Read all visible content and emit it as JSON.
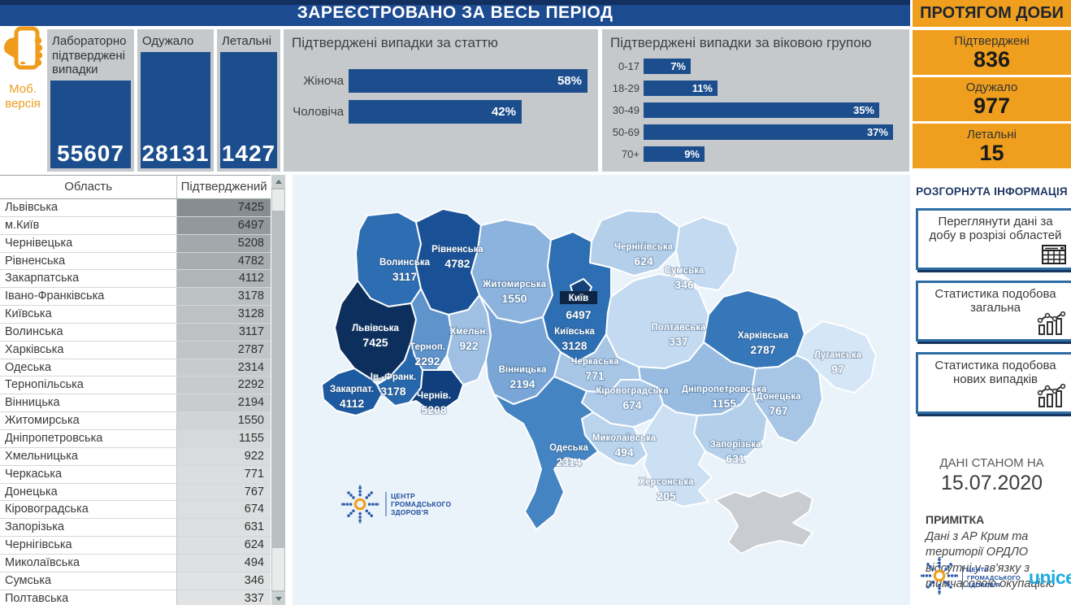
{
  "colors": {
    "navy_bar": "#1d4b91",
    "panel_gray": "#c6c9cb",
    "bar_navy": "#1c4e8e",
    "orange": "#ef9f1d",
    "map_bg": "#eaf2fa",
    "crimea_gray": "#c9cdd1",
    "unicef_blue": "#1cabe2",
    "phc_blue": "#1f4e9c"
  },
  "top_bar": {
    "title": "ЗАРЕЄСТРОВАНО ЗА ВЕСЬ ПЕРІОД"
  },
  "mobile": {
    "label": "Моб. версія"
  },
  "kpis": [
    {
      "label": "Лабораторно підтверджені випадки",
      "value": "55607"
    },
    {
      "label": "Одужало",
      "value": "28131"
    },
    {
      "label": "Летальні",
      "value": "1427"
    }
  ],
  "daily": {
    "title": "ПРОТЯГОМ ДОБИ",
    "cards": [
      {
        "label": "Підтверджені",
        "value": "836"
      },
      {
        "label": "Одужало",
        "value": "977"
      },
      {
        "label": "Летальні",
        "value": "15"
      }
    ]
  },
  "gender": {
    "title": "Підтверджені випадки за статтю",
    "axis_max": 58,
    "bars": [
      {
        "label": "Жіноча",
        "value": 58
      },
      {
        "label": "Чоловіча",
        "value": 42
      }
    ]
  },
  "age": {
    "title": "Підтверджені випадки за віковою групою",
    "axis_max": 37,
    "bars": [
      {
        "label": "0-17",
        "value": 7
      },
      {
        "label": "18-29",
        "value": 11
      },
      {
        "label": "30-49",
        "value": 35
      },
      {
        "label": "50-69",
        "value": 37
      },
      {
        "label": "70+",
        "value": 9
      }
    ]
  },
  "info": {
    "heading": "РОЗГОРНУТА ІНФОРМАЦІЯ",
    "buttons": [
      {
        "label": "Переглянути дані за добу в розрізі областей",
        "icon": "table-icon"
      },
      {
        "label": "Статистика подобова загальна",
        "icon": "chart-icon"
      },
      {
        "label": "Статистика подобова нових випадків",
        "icon": "chart-icon"
      }
    ]
  },
  "footer": {
    "as_of_label": "ДАНІ СТАНОМ НА",
    "date": "15.07.2020",
    "note_title": "ПРИМІТКА",
    "note": "Дані з АР Крим та території ОРДЛО відсутні у зв'язку з тимчасовою окупацією"
  },
  "logos": {
    "phc_lines": [
      "ЦЕНТР",
      "ГРОМАДСЬКОГО",
      "ЗДОРОВ'Я"
    ],
    "unicef": "unicef"
  },
  "table": {
    "headers": [
      "Область",
      "Підтверджений"
    ],
    "rows": [
      [
        "Львівська",
        7425
      ],
      [
        "м.Київ",
        6497
      ],
      [
        "Чернівецька",
        5208
      ],
      [
        "Рівненська",
        4782
      ],
      [
        "Закарпатська",
        4112
      ],
      [
        "Івано-Франківська",
        3178
      ],
      [
        "Київська",
        3128
      ],
      [
        "Волинська",
        3117
      ],
      [
        "Харківська",
        2787
      ],
      [
        "Одеська",
        2314
      ],
      [
        "Тернопільська",
        2292
      ],
      [
        "Вінницька",
        2194
      ],
      [
        "Житомирська",
        1550
      ],
      [
        "Дніпропетровська",
        1155
      ],
      [
        "Хмельницька",
        922
      ],
      [
        "Черкаська",
        771
      ],
      [
        "Донецька",
        767
      ],
      [
        "Кіровоградська",
        674
      ],
      [
        "Запорізька",
        631
      ],
      [
        "Чернігівська",
        624
      ],
      [
        "Миколаївська",
        494
      ],
      [
        "Сумська",
        346
      ],
      [
        "Полтавська",
        337
      ],
      [
        "Херсонська",
        205
      ]
    ]
  },
  "map": {
    "kyiv_tag": "Київ",
    "regions": [
      {
        "id": "volyn",
        "name": "Волинська",
        "map_label": "Волинська",
        "value": 3117,
        "color": "#2d6db1"
      },
      {
        "id": "rivne",
        "name": "Рівненська",
        "map_label": "Рівненська",
        "value": 4782,
        "color": "#1a5196"
      },
      {
        "id": "zhytomyr",
        "name": "Житомирська",
        "map_label": "Житомирська",
        "value": 1550,
        "color": "#8cb3dd"
      },
      {
        "id": "kyivobl",
        "name": "Київська",
        "map_label": "Київська",
        "value": 3128,
        "color": "#2d6fb2"
      },
      {
        "id": "kyivcity",
        "name": "м.Київ",
        "map_label": "Київ",
        "value": 6497,
        "color": "#16407a"
      },
      {
        "id": "chernihiv",
        "name": "Чернігівська",
        "map_label": "Чернігівська",
        "value": 624,
        "color": "#b3cfea"
      },
      {
        "id": "sumy",
        "name": "Сумська",
        "map_label": "Сумська",
        "value": 346,
        "color": "#c3daf0"
      },
      {
        "id": "lviv",
        "name": "Львівська",
        "map_label": "Львівська",
        "value": 7425,
        "color": "#0d2f5d"
      },
      {
        "id": "ternopil",
        "name": "Тернопільська",
        "map_label": "Терноп.",
        "value": 2292,
        "color": "#5e94cb"
      },
      {
        "id": "khmel",
        "name": "Хмельницька",
        "map_label": "Хмельн.",
        "value": 922,
        "color": "#9fc0e3"
      },
      {
        "id": "vinnytsia",
        "name": "Вінницька",
        "map_label": "Вінницька",
        "value": 2194,
        "color": "#79a6d6"
      },
      {
        "id": "cherkasy",
        "name": "Черкаська",
        "map_label": "Черкаська",
        "value": 771,
        "color": "#a7c6e6"
      },
      {
        "id": "poltava",
        "name": "Полтавська",
        "map_label": "Полтавська",
        "value": 337,
        "color": "#c3daf0"
      },
      {
        "id": "kharkiv",
        "name": "Харківська",
        "map_label": "Харківська",
        "value": 2787,
        "color": "#3577b9"
      },
      {
        "id": "luhansk",
        "name": "Луганська",
        "map_label": "Луганська",
        "value": 97,
        "color": "#d5e6f6"
      },
      {
        "id": "ivano",
        "name": "Івано-Франківська",
        "map_label": "Ів.-Франк.",
        "value": 3178,
        "color": "#2767ab"
      },
      {
        "id": "zakarp",
        "name": "Закарпатська",
        "map_label": "Закарпат.",
        "value": 4112,
        "color": "#1d5aa0"
      },
      {
        "id": "chernivtsi",
        "name": "Чернівецька",
        "map_label": "Чернів.",
        "value": 5208,
        "color": "#113f7d"
      },
      {
        "id": "kirovohrad",
        "name": "Кіровоградська",
        "map_label": "Кіровоградська",
        "value": 674,
        "color": "#aecbe9"
      },
      {
        "id": "dnipro",
        "name": "Дніпропетровська",
        "map_label": "Дніпропетровська",
        "value": 1155,
        "color": "#97bbe1"
      },
      {
        "id": "donetsk",
        "name": "Донецька",
        "map_label": "Донецька",
        "value": 767,
        "color": "#a7c6e6"
      },
      {
        "id": "zaporizhzhia",
        "name": "Запорізька",
        "map_label": "Запорізька",
        "value": 631,
        "color": "#b3cfea"
      },
      {
        "id": "mykolaiv",
        "name": "Миколаївська",
        "map_label": "Миколаївська",
        "value": 494,
        "color": "#bad4ed"
      },
      {
        "id": "kherson",
        "name": "Херсонська",
        "map_label": "Херсонська",
        "value": 205,
        "color": "#cce0f3"
      },
      {
        "id": "odesa",
        "name": "Одеська",
        "map_label": "Одеська",
        "value": 2314,
        "color": "#4584c2"
      },
      {
        "id": "crimea",
        "name": "АР Крим",
        "map_label": "",
        "value": null,
        "color": "#c9cdd1"
      }
    ]
  },
  "chart_data": [
    {
      "type": "bar",
      "title": "Підтверджені випадки за статтю",
      "orientation": "horizontal",
      "categories": [
        "Жіноча",
        "Чоловіча"
      ],
      "values": [
        58,
        42
      ],
      "unit": "%",
      "xlim": [
        0,
        58
      ]
    },
    {
      "type": "bar",
      "title": "Підтверджені випадки за віковою групою",
      "orientation": "horizontal",
      "categories": [
        "0-17",
        "18-29",
        "30-49",
        "50-69",
        "70+"
      ],
      "values": [
        7,
        11,
        35,
        37,
        9
      ],
      "unit": "%",
      "xlim": [
        0,
        37
      ]
    },
    {
      "type": "table",
      "title": "Підтверджені випадки за областями",
      "columns": [
        "Область",
        "Підтверджений"
      ],
      "rows": [
        [
          "Львівська",
          7425
        ],
        [
          "м.Київ",
          6497
        ],
        [
          "Чернівецька",
          5208
        ],
        [
          "Рівненська",
          4782
        ],
        [
          "Закарпатська",
          4112
        ],
        [
          "Івано-Франківська",
          3178
        ],
        [
          "Київська",
          3128
        ],
        [
          "Волинська",
          3117
        ],
        [
          "Харківська",
          2787
        ],
        [
          "Одеська",
          2314
        ],
        [
          "Тернопільська",
          2292
        ],
        [
          "Вінницька",
          2194
        ],
        [
          "Житомирська",
          1550
        ],
        [
          "Дніпропетровська",
          1155
        ],
        [
          "Хмельницька",
          922
        ],
        [
          "Черкаська",
          771
        ],
        [
          "Донецька",
          767
        ],
        [
          "Кіровоградська",
          674
        ],
        [
          "Запорізька",
          631
        ],
        [
          "Чернігівська",
          624
        ],
        [
          "Миколаївська",
          494
        ],
        [
          "Сумська",
          346
        ],
        [
          "Полтавська",
          337
        ],
        [
          "Херсонська",
          205
        ]
      ]
    },
    {
      "type": "heatmap",
      "subtype": "choropleth-map",
      "title": "Підтверджені випадки за областями (карта України)",
      "note": "Дані з АР Крим та території ОРДЛО відсутні у зв'язку з тимчасовою окупацією"
    }
  ]
}
